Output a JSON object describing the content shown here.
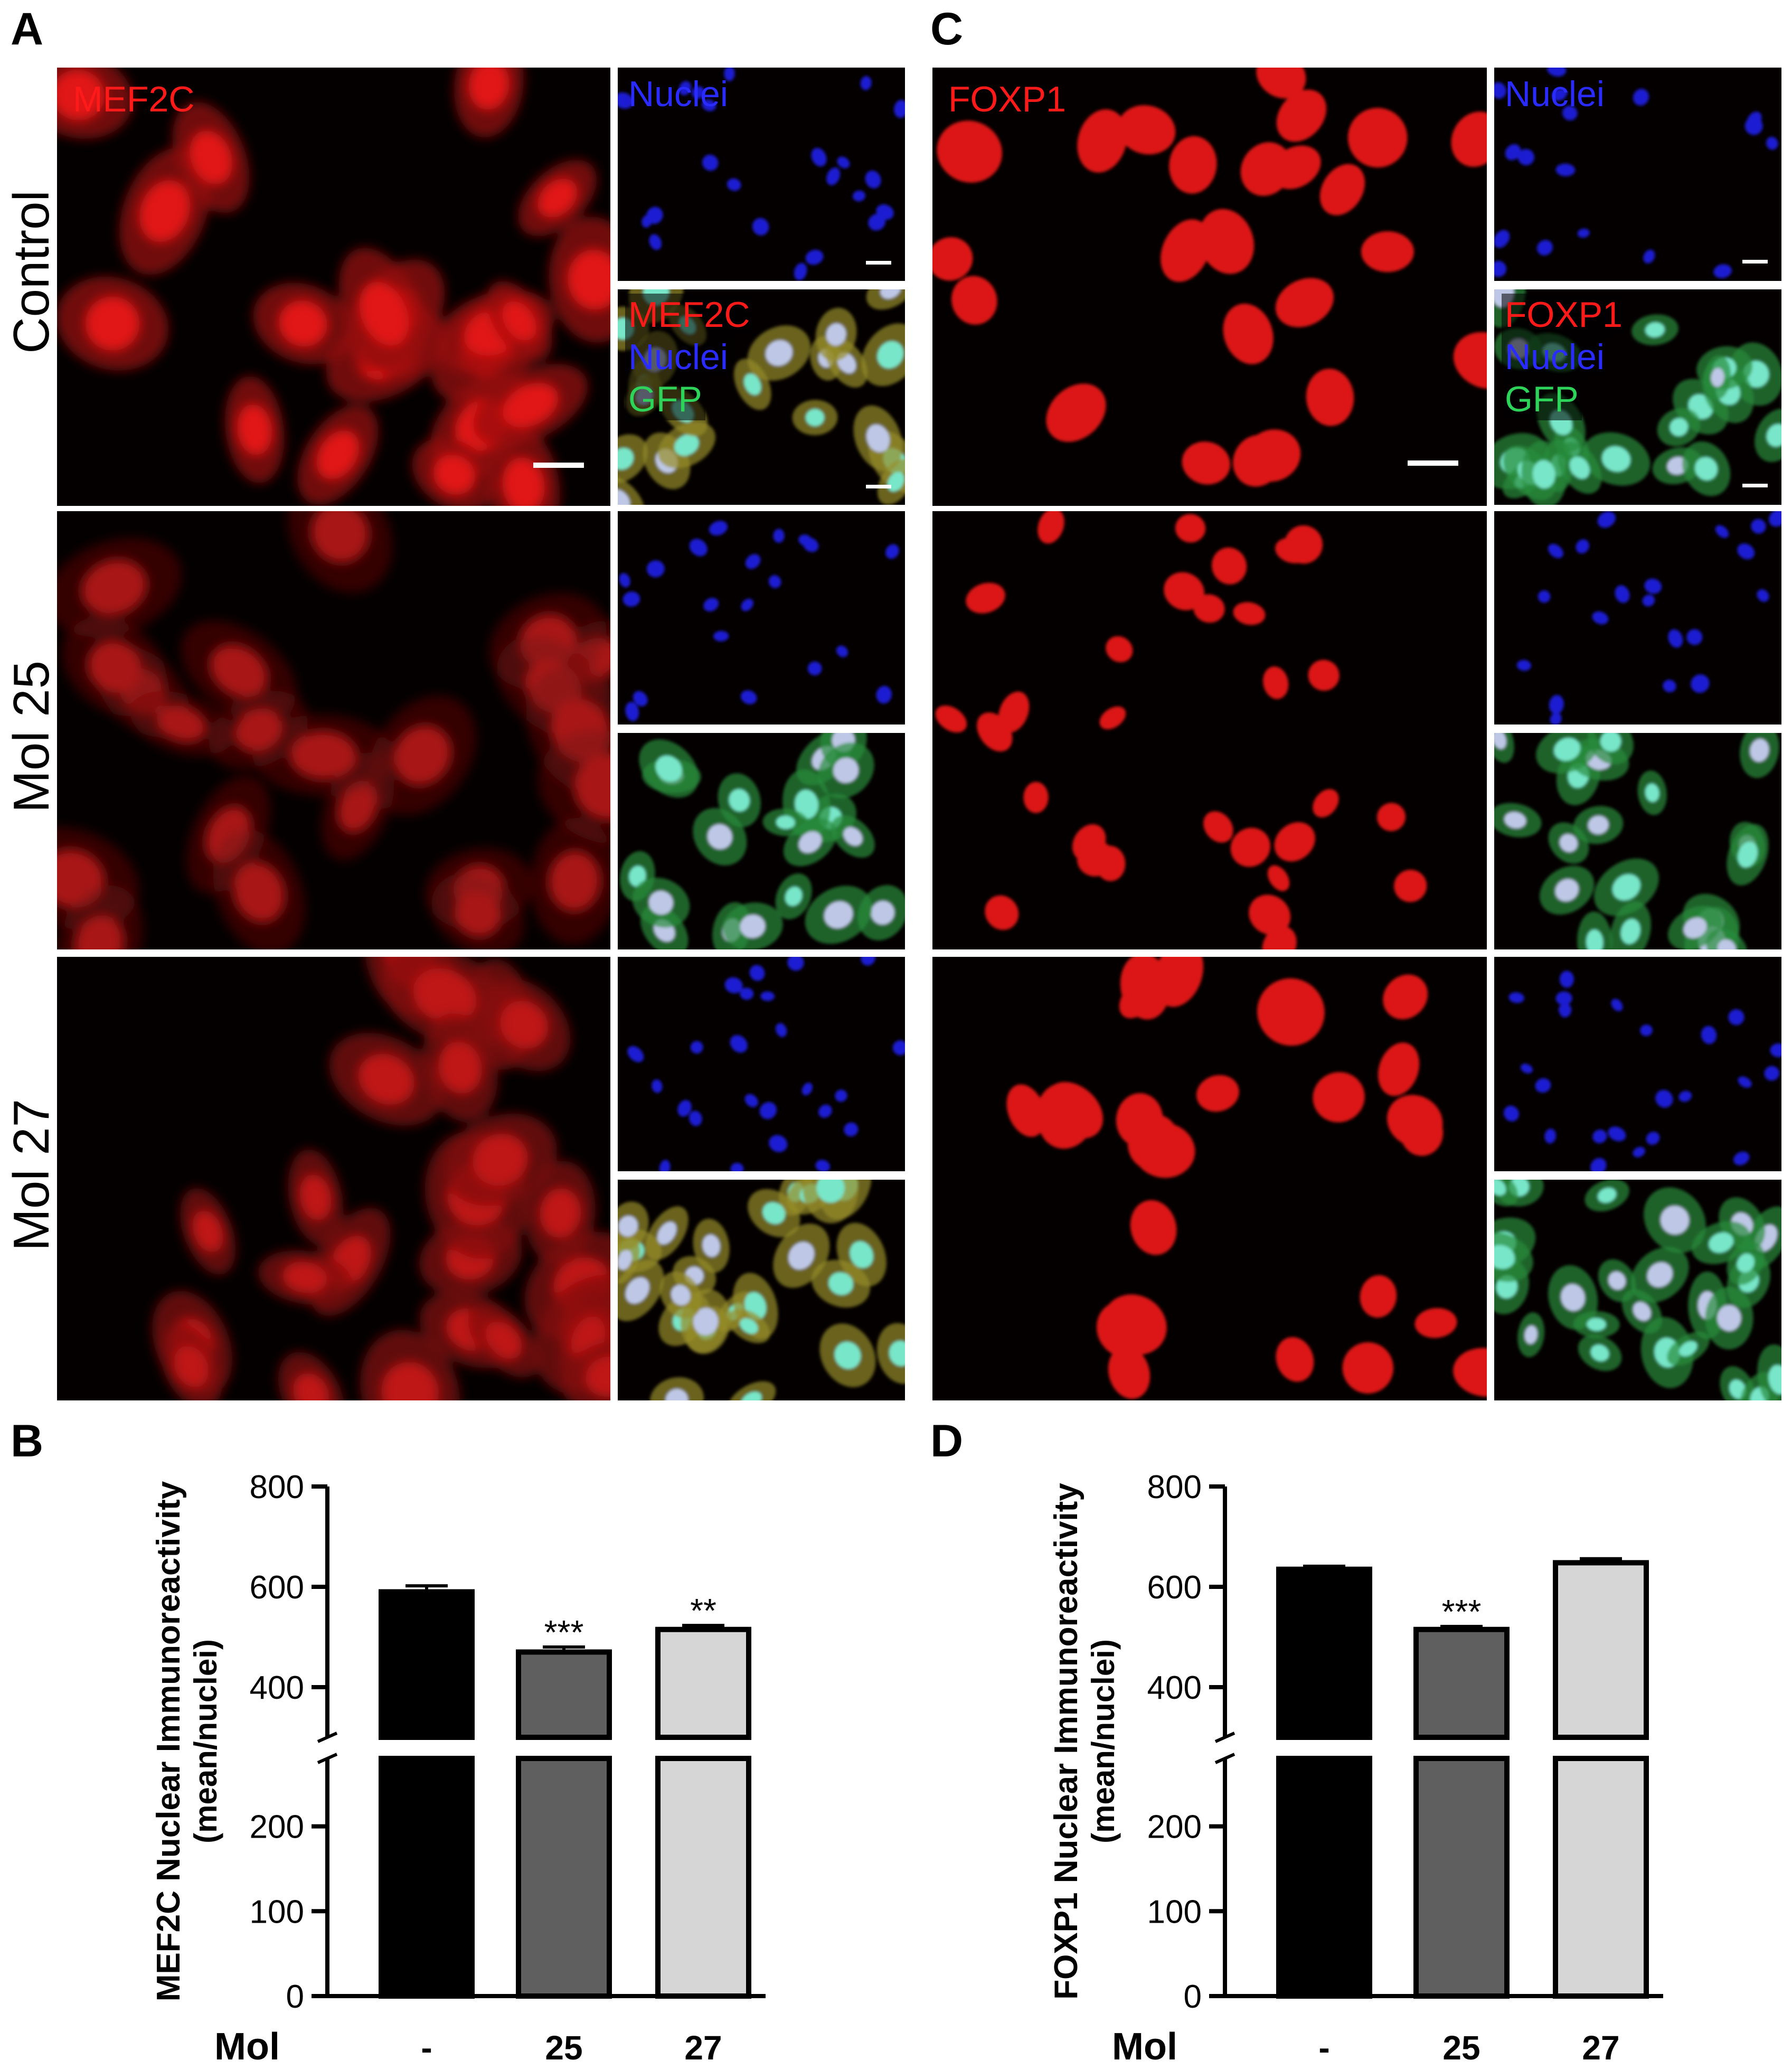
{
  "panels": {
    "A": {
      "letter": "A",
      "main_label": "MEF2C",
      "merge_labels": [
        "MEF2C",
        "Nuclei",
        "GFP"
      ],
      "nuclei_label": "Nuclei"
    },
    "C": {
      "letter": "C",
      "main_label": "FOXP1",
      "merge_labels": [
        "FOXP1",
        "Nuclei",
        "GFP"
      ],
      "nuclei_label": "Nuclei"
    },
    "B": {
      "letter": "B"
    },
    "D": {
      "letter": "D"
    }
  },
  "row_labels": [
    "Control",
    "Mol 25",
    "Mol 27"
  ],
  "colors": {
    "red_channel": "#ff1a1a",
    "blue_channel": "#2a2cff",
    "green_channel": "#2ed35a",
    "bar_control": "#000000",
    "bar_mol25": "#5f5f5f",
    "bar_mol27": "#d6d6d6"
  },
  "chart_data": [
    {
      "type": "bar",
      "panel": "B",
      "ylabel_lines": [
        "MEF2C Nuclear Immunoreactivity",
        "(mean/nuclei)"
      ],
      "xlabel": "Mol",
      "categories": [
        "-",
        "25",
        "27"
      ],
      "values": [
        590,
        470,
        515
      ],
      "errors": [
        12,
        10,
        8
      ],
      "significance": [
        "",
        "***",
        "**"
      ],
      "yticks": [
        0,
        100,
        200,
        400,
        600,
        800
      ],
      "ylim": [
        0,
        800
      ],
      "axis_break": [
        280,
        300
      ]
    },
    {
      "type": "bar",
      "panel": "D",
      "ylabel_lines": [
        "FOXP1 Nuclear Immunoreactivity",
        "(mean/nuclei)"
      ],
      "xlabel": "Mol",
      "categories": [
        "-",
        "25",
        "27"
      ],
      "values": [
        635,
        515,
        648
      ],
      "errors": [
        6,
        6,
        8
      ],
      "significance": [
        "",
        "***",
        ""
      ],
      "yticks": [
        0,
        100,
        200,
        400,
        600,
        800
      ],
      "ylim": [
        0,
        800
      ],
      "axis_break": [
        280,
        300
      ]
    }
  ]
}
